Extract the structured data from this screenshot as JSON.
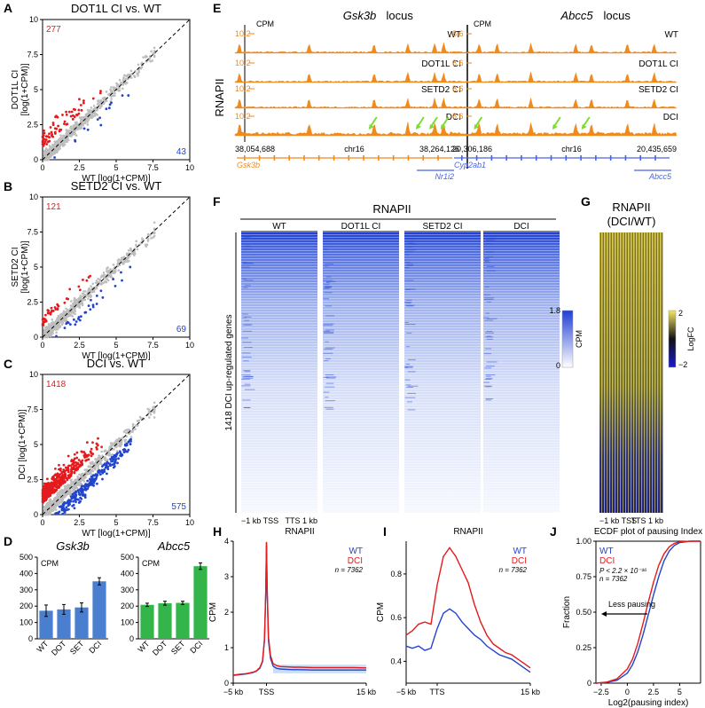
{
  "panel_letters": [
    "A",
    "B",
    "C",
    "D",
    "E",
    "F",
    "G",
    "H",
    "I",
    "J"
  ],
  "colors": {
    "red": "#e41a1c",
    "blue": "#2244cc",
    "gray": "#bdbdbd",
    "orange": "#f08a1c",
    "bar_blue": "#4a7fd0",
    "bar_green": "#33b54a",
    "green_arrow": "#7ddc33",
    "yellow": "#f5e663",
    "navy": "#1a1a8c"
  },
  "scatter_common": {
    "xlabel": "WT [log(1+CPM)]",
    "ticks": [
      "0",
      "2.5",
      "5",
      "7.5",
      "10"
    ],
    "ytick_labels": [
      "0",
      "2.5",
      "5",
      "7.5",
      "10"
    ]
  },
  "scatter_panels": [
    {
      "id": "A",
      "title": "DOT1L CI vs. WT",
      "ylabel": "DOT1L CI [log(1+CPM)]",
      "ylabel1": "DOT1L CI",
      "ylabel2": "[log(1+CPM)]",
      "up_count": "277",
      "down_count": "43"
    },
    {
      "id": "B",
      "title": "SETD2 CI vs. WT",
      "ylabel": "SETD2 CI [log(1+CPM)]",
      "ylabel1": "SETD2 CI",
      "ylabel2": "[log(1+CPM)]",
      "up_count": "121",
      "down_count": "69"
    },
    {
      "id": "C",
      "title": "DCI vs. WT",
      "ylabel": "DCI [log(1+CPM)]",
      "ylabel1": "DCI [log(1+CPM)]",
      "ylabel2": "",
      "up_count": "1418",
      "down_count": "575"
    }
  ],
  "chart_data": [
    {
      "type": "bar",
      "id": "D-left",
      "title": "Gsk3b",
      "ylabel": "CPM",
      "categories": [
        "WT",
        "DOT",
        "SET",
        "DCI"
      ],
      "values": [
        172,
        180,
        192,
        352
      ],
      "errors": [
        35,
        30,
        28,
        22
      ],
      "ylim": [
        0,
        500
      ],
      "yticks": [
        "0",
        "100",
        "200",
        "300",
        "400",
        "500"
      ]
    },
    {
      "type": "bar",
      "id": "D-right",
      "title": "Abcc5",
      "ylabel": "CPM",
      "categories": [
        "WT",
        "DOT",
        "SET",
        "DCI"
      ],
      "values": [
        208,
        218,
        220,
        445
      ],
      "errors": [
        10,
        12,
        10,
        20
      ],
      "ylim": [
        0,
        500
      ],
      "yticks": [
        "0",
        "100",
        "200",
        "300",
        "400",
        "500"
      ]
    },
    {
      "type": "line",
      "id": "H",
      "title": "RNAPII",
      "xlabel_ticks": [
        "−5 kb",
        "TSS",
        "15 kb"
      ],
      "ylabel": "CPM",
      "ylim": [
        0,
        4
      ],
      "yticks": [
        "0",
        "1",
        "2",
        "3",
        "4"
      ],
      "legend": [
        "WT",
        "DCI"
      ],
      "n_label": "n = 7362",
      "x": [
        -5,
        -4,
        -3,
        -2,
        -1.5,
        -1,
        -0.6,
        -0.3,
        -0.1,
        0,
        0.1,
        0.3,
        0.6,
        1,
        1.5,
        2,
        3,
        4,
        5,
        7,
        9,
        11,
        13,
        15
      ],
      "series": [
        {
          "name": "WT",
          "values": [
            0.22,
            0.24,
            0.26,
            0.3,
            0.34,
            0.42,
            0.6,
            1.2,
            2.6,
            3.95,
            2.6,
            1.2,
            0.7,
            0.48,
            0.42,
            0.4,
            0.39,
            0.38,
            0.38,
            0.37,
            0.37,
            0.37,
            0.37,
            0.37
          ]
        },
        {
          "name": "DCI",
          "values": [
            0.23,
            0.25,
            0.27,
            0.31,
            0.35,
            0.44,
            0.62,
            1.25,
            2.65,
            3.98,
            2.7,
            1.3,
            0.78,
            0.55,
            0.5,
            0.47,
            0.46,
            0.45,
            0.45,
            0.44,
            0.44,
            0.44,
            0.44,
            0.43
          ]
        }
      ]
    },
    {
      "type": "line",
      "id": "I",
      "title": "RNAPII",
      "xlabel_ticks": [
        "−5 kb",
        "TTS",
        "15 kb"
      ],
      "ylabel": "CPM",
      "ylim": [
        0.3,
        0.95
      ],
      "yticks": [
        "0.4",
        "0.6",
        "0.8"
      ],
      "legend": [
        "WT",
        "DCI"
      ],
      "n_label": "n = 7362",
      "x": [
        -5,
        -4,
        -3,
        -2,
        -1,
        0,
        1,
        2,
        3,
        4,
        5,
        6,
        7,
        8,
        9,
        10,
        11,
        12,
        13,
        14,
        15
      ],
      "series": [
        {
          "name": "WT",
          "values": [
            0.47,
            0.46,
            0.47,
            0.45,
            0.46,
            0.55,
            0.62,
            0.64,
            0.62,
            0.58,
            0.55,
            0.52,
            0.5,
            0.47,
            0.45,
            0.43,
            0.42,
            0.41,
            0.39,
            0.37,
            0.35
          ]
        },
        {
          "name": "DCI",
          "values": [
            0.52,
            0.54,
            0.57,
            0.58,
            0.57,
            0.75,
            0.88,
            0.92,
            0.88,
            0.82,
            0.76,
            0.66,
            0.58,
            0.52,
            0.48,
            0.46,
            0.44,
            0.43,
            0.41,
            0.39,
            0.37
          ]
        }
      ]
    },
    {
      "type": "line",
      "id": "J",
      "title": "ECDF plot of pausing Index",
      "xlabel": "Log2(pausing index)",
      "ylabel": "Fraction",
      "xlim": [
        -3,
        7
      ],
      "xticks": [
        "−2.5",
        "0",
        "2.5",
        "5"
      ],
      "ylim": [
        0,
        1
      ],
      "yticks": [
        "0",
        "0.25",
        "0.50",
        "0.75",
        "1.00"
      ],
      "legend": [
        "WT",
        "DCI"
      ],
      "p_label": "P < 2.2 × 10⁻¹⁶",
      "n_label": "n = 7362",
      "annotation": "Less pausing",
      "x": [
        -3,
        -2,
        -1,
        0,
        0.5,
        1,
        1.5,
        2,
        2.5,
        3,
        3.5,
        4,
        4.5,
        5,
        6,
        7
      ],
      "series": [
        {
          "name": "WT",
          "values": [
            0,
            0.005,
            0.02,
            0.07,
            0.13,
            0.22,
            0.34,
            0.48,
            0.62,
            0.75,
            0.86,
            0.93,
            0.97,
            0.99,
            1,
            1
          ]
        },
        {
          "name": "DCI",
          "values": [
            0,
            0.007,
            0.03,
            0.1,
            0.17,
            0.28,
            0.42,
            0.57,
            0.71,
            0.83,
            0.91,
            0.96,
            0.985,
            0.995,
            1,
            1
          ]
        }
      ]
    }
  ],
  "panel_E": {
    "track_group_label": "RNAPII",
    "cpm_label": "CPM",
    "loci": [
      {
        "title": "Gsk3b",
        "suffix": "locus",
        "ymax": "10.2",
        "tracks": [
          "WT",
          "DOT1L CI",
          "SETD2 CI",
          "DCI"
        ],
        "coord_start": "38,054,688",
        "coord_end": "38,264,126",
        "chrom": "chr16",
        "genes": [
          "Gsk3b",
          "Nr1i2"
        ]
      },
      {
        "title": "Abcc5",
        "suffix": "locus",
        "ymax": "8.6",
        "tracks": [
          "WT",
          "DOT1L CI",
          "SETD2 CI",
          "DCI"
        ],
        "coord_start": "20,306,186",
        "coord_end": "20,435,659",
        "chrom": "chr16",
        "genes": [
          "Cyp2ab1",
          "Abcc5"
        ]
      }
    ]
  },
  "panel_F": {
    "title": "RNAPII",
    "columns": [
      "WT",
      "DOT1L CI",
      "SETD2 CI",
      "DCI"
    ],
    "ylabel": "1418 DCI up-regulated genes",
    "x_left": "−1 kb TSS",
    "x_right": "TTS 1 kb",
    "scale_max": "1.8",
    "scale_min": "0",
    "scale_label": "CPM"
  },
  "panel_G": {
    "title": "RNAPII",
    "subtitle": "(DCI/WT)",
    "x_left": "−1 kb TSS",
    "x_right": "TTS 1 kb",
    "scale_max": "2",
    "scale_min": "−2",
    "scale_label": "LogFC"
  }
}
